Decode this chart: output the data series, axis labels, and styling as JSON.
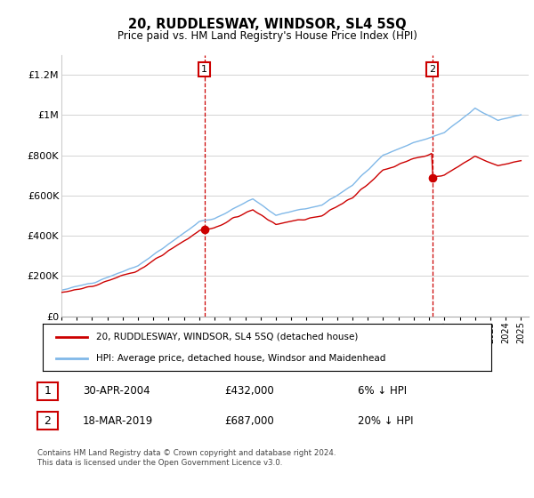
{
  "title": "20, RUDDLESWAY, WINDSOR, SL4 5SQ",
  "subtitle": "Price paid vs. HM Land Registry's House Price Index (HPI)",
  "ylim": [
    0,
    1300000
  ],
  "yticks": [
    0,
    200000,
    400000,
    600000,
    800000,
    1000000,
    1200000
  ],
  "ytick_labels": [
    "£0",
    "£200K",
    "£400K",
    "£600K",
    "£800K",
    "£1M",
    "£1.2M"
  ],
  "legend_line1": "20, RUDDLESWAY, WINDSOR, SL4 5SQ (detached house)",
  "legend_line2": "HPI: Average price, detached house, Windsor and Maidenhead",
  "line_color_red": "#cc0000",
  "line_color_blue": "#80b8e8",
  "annotation1_label": "1",
  "annotation1_date": "30-APR-2004",
  "annotation1_price": "£432,000",
  "annotation1_hpi": "6% ↓ HPI",
  "annotation2_label": "2",
  "annotation2_date": "18-MAR-2019",
  "annotation2_price": "£687,000",
  "annotation2_hpi": "20% ↓ HPI",
  "footer": "Contains HM Land Registry data © Crown copyright and database right 2024.\nThis data is licensed under the Open Government Licence v3.0.",
  "purchase1_x": 2004.33,
  "purchase1_y": 432000,
  "purchase2_x": 2019.21,
  "purchase2_y": 687000,
  "xlim": [
    1995,
    2025.5
  ],
  "xtick_start": 1995,
  "xtick_end": 2025
}
